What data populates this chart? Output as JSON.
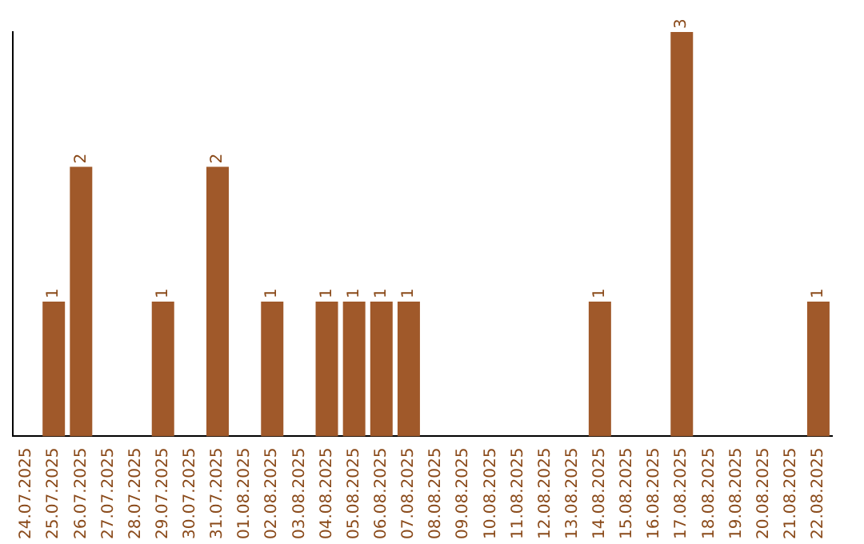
{
  "chart_data": {
    "type": "bar",
    "categories": [
      "24.07.2025",
      "25.07.2025",
      "26.07.2025",
      "27.07.2025",
      "28.07.2025",
      "29.07.2025",
      "30.07.2025",
      "31.07.2025",
      "01.08.2025",
      "02.08.2025",
      "03.08.2025",
      "04.08.2025",
      "05.08.2025",
      "06.08.2025",
      "07.08.2025",
      "08.08.2025",
      "09.08.2025",
      "10.08.2025",
      "11.08.2025",
      "12.08.2025",
      "13.08.2025",
      "14.08.2025",
      "15.08.2025",
      "16.08.2025",
      "17.08.2025",
      "18.08.2025",
      "19.08.2025",
      "20.08.2025",
      "21.08.2025",
      "22.08.2025"
    ],
    "values": [
      0,
      1,
      2,
      0,
      0,
      1,
      0,
      2,
      0,
      1,
      0,
      1,
      1,
      1,
      1,
      0,
      0,
      0,
      0,
      0,
      0,
      1,
      0,
      0,
      3,
      0,
      0,
      0,
      0,
      1
    ],
    "value_labels": [
      null,
      "1",
      "2",
      null,
      null,
      "1",
      null,
      "2",
      null,
      "1",
      null,
      "1",
      "1",
      "1",
      "1",
      null,
      null,
      null,
      null,
      null,
      null,
      "1",
      null,
      null,
      "3",
      null,
      null,
      null,
      null,
      "1"
    ],
    "color": "#a0592a",
    "grid": false,
    "legend": false,
    "tick_labels": "x"
  }
}
